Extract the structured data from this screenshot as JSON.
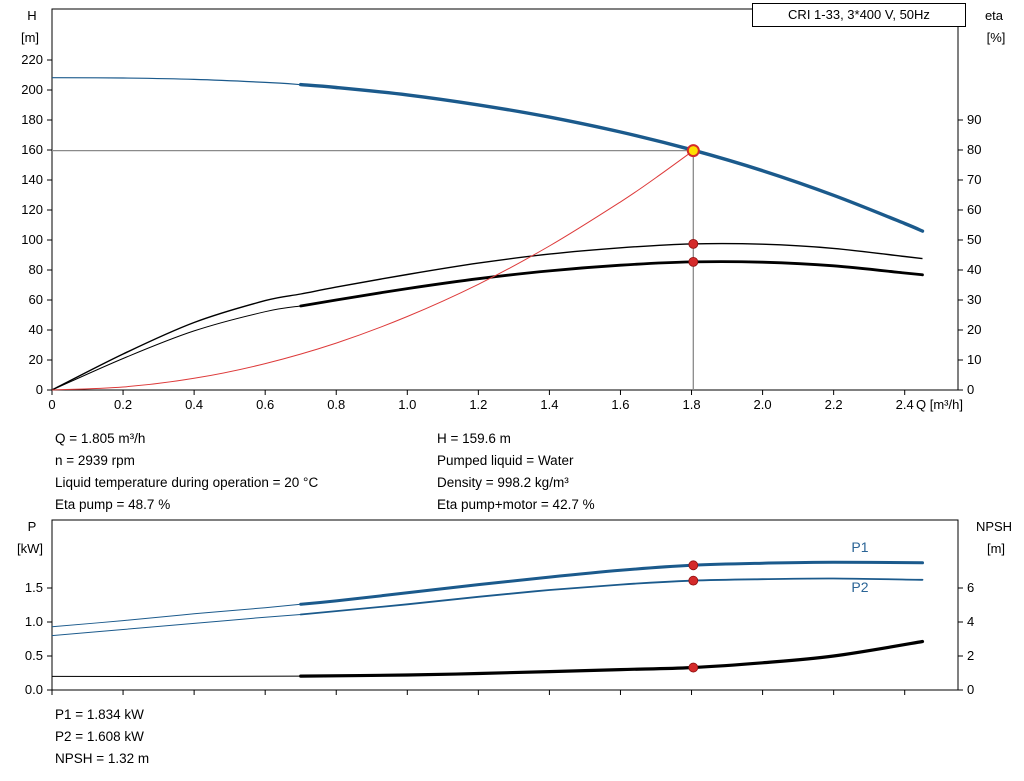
{
  "title_box": "CRI 1-33, 3*400 V, 50Hz",
  "colors": {
    "blue": "#1b5a8c",
    "red": "#d42a2a",
    "system_red": "#dd3a3a",
    "black": "#000000",
    "gray_ref": "#8a8a8a",
    "duty_fill": "#ffdf00",
    "label_blue": "#2a6496",
    "axis": "#000000"
  },
  "info": {
    "left": [
      "Q = 1.805 m³/h",
      "n = 2939 rpm",
      "Liquid temperature during operation = 20 °C",
      "Eta pump = 48.7 %"
    ],
    "right": [
      "H = 159.6 m",
      "Pumped liquid = Water",
      "Density = 998.2 kg/m³",
      "Eta pump+motor = 42.7 %"
    ],
    "bottom": [
      "P1 = 1.834 kW",
      "P2 = 1.608 kW",
      "NPSH = 1.32 m"
    ]
  },
  "chart_data": [
    {
      "type": "line",
      "title": "CRI 1-33, 3*400 V, 50Hz",
      "x_axis": {
        "label": "Q [m³/h]",
        "min": 0,
        "max": 2.55,
        "ticks": [
          0,
          0.2,
          0.4,
          0.6,
          0.8,
          1,
          1.2,
          1.4,
          1.6,
          1.8,
          2,
          2.2,
          2.4
        ],
        "tick_labels": [
          "0",
          "0.2",
          "0.4",
          "0.6",
          "0.8",
          "1.0",
          "1.2",
          "1.4",
          "1.6",
          "1.8",
          "2.0",
          "2.2",
          "2.4"
        ],
        "show_tick_labels": true
      },
      "left_axis": {
        "label": "H",
        "unit": "[m]",
        "min": 0,
        "max": 254,
        "ticks": [
          0,
          20,
          40,
          60,
          80,
          100,
          120,
          140,
          160,
          180,
          200,
          220
        ],
        "tick_labels": [
          "0",
          "20",
          "40",
          "60",
          "80",
          "100",
          "120",
          "140",
          "160",
          "180",
          "200",
          "220"
        ]
      },
      "right_axis": {
        "label": "eta",
        "unit": "[%]",
        "min": 0,
        "max": 127,
        "ticks": [
          0,
          10,
          20,
          30,
          40,
          50,
          60,
          70,
          80,
          90
        ],
        "tick_labels": [
          "0",
          "10",
          "20",
          "30",
          "40",
          "50",
          "60",
          "70",
          "80",
          "90"
        ]
      },
      "series": [
        {
          "name": "head-curve",
          "axis": "left",
          "color": "blue",
          "width": 1.2,
          "width_bold": 3.4,
          "bold_from": 0.7,
          "points": [
            [
              0,
              208.2
            ],
            [
              0.2,
              208.0
            ],
            [
              0.4,
              207.1
            ],
            [
              0.6,
              205.1
            ],
            [
              0.7,
              203.6
            ],
            [
              0.8,
              201.7
            ],
            [
              1.0,
              196.7
            ],
            [
              1.2,
              190.1
            ],
            [
              1.4,
              181.9
            ],
            [
              1.6,
              172.0
            ],
            [
              1.8,
              160.2
            ],
            [
              2.0,
              146.2
            ],
            [
              2.2,
              129.8
            ],
            [
              2.4,
              111.0
            ],
            [
              2.45,
              105.9
            ]
          ]
        },
        {
          "name": "eta-pump-curve",
          "axis": "right",
          "color": "black",
          "width": 1.4,
          "points": [
            [
              0,
              0
            ],
            [
              0.2,
              12.0
            ],
            [
              0.4,
              22.5
            ],
            [
              0.6,
              29.8
            ],
            [
              0.7,
              32.0
            ],
            [
              0.8,
              34.3
            ],
            [
              1.0,
              38.5
            ],
            [
              1.2,
              42.3
            ],
            [
              1.4,
              45.3
            ],
            [
              1.6,
              47.4
            ],
            [
              1.8,
              48.7
            ],
            [
              2.0,
              48.6
            ],
            [
              2.2,
              47.2
            ],
            [
              2.4,
              44.5
            ],
            [
              2.45,
              43.8
            ]
          ]
        },
        {
          "name": "eta-pump-motor-curve",
          "axis": "right",
          "color": "black",
          "width": 1.0,
          "width_bold": 2.8,
          "bold_from": 0.7,
          "points": [
            [
              0,
              0
            ],
            [
              0.2,
              10.5
            ],
            [
              0.4,
              19.7
            ],
            [
              0.6,
              26.1
            ],
            [
              0.7,
              28.0
            ],
            [
              0.8,
              30.0
            ],
            [
              1.0,
              33.8
            ],
            [
              1.2,
              37.1
            ],
            [
              1.4,
              39.7
            ],
            [
              1.6,
              41.6
            ],
            [
              1.8,
              42.7
            ],
            [
              2.0,
              42.6
            ],
            [
              2.2,
              41.4
            ],
            [
              2.4,
              39.0
            ],
            [
              2.45,
              38.4
            ]
          ]
        },
        {
          "name": "system-curve",
          "axis": "left",
          "color": "system_red",
          "width": 1.0,
          "points": [
            [
              0,
              0
            ],
            [
              0.2,
              2.0
            ],
            [
              0.4,
              7.8
            ],
            [
              0.6,
              17.6
            ],
            [
              0.8,
              31.3
            ],
            [
              1.0,
              49.0
            ],
            [
              1.2,
              70.5
            ],
            [
              1.4,
              96.0
            ],
            [
              1.6,
              125.4
            ],
            [
              1.7,
              141.6
            ],
            [
              1.805,
              159.6
            ]
          ]
        }
      ],
      "crosshair": {
        "q": 1.805,
        "value": 159.6
      },
      "markers": [
        {
          "name": "duty-point",
          "q": 1.805,
          "value": 159.6,
          "axis": "left",
          "style": "duty"
        },
        {
          "name": "eta-pump-point",
          "q": 1.805,
          "value": 48.7,
          "axis": "right",
          "style": "dot"
        },
        {
          "name": "eta-pump-motor-point",
          "q": 1.805,
          "value": 42.7,
          "axis": "right",
          "style": "dot"
        }
      ],
      "series_labels": []
    },
    {
      "type": "line",
      "title": "",
      "x_axis": {
        "label": "",
        "min": 0,
        "max": 2.55,
        "ticks": [
          0,
          0.2,
          0.4,
          0.6,
          0.8,
          1,
          1.2,
          1.4,
          1.6,
          1.8,
          2,
          2.2,
          2.4
        ],
        "tick_labels": [],
        "show_tick_labels": false
      },
      "left_axis": {
        "label": "P",
        "unit": "[kW]",
        "min": 0,
        "max": 2.5,
        "ticks": [
          0,
          0.5,
          1,
          1.5
        ],
        "tick_labels": [
          "0.0",
          "0.5",
          "1.0",
          "1.5"
        ]
      },
      "right_axis": {
        "label": "NPSH",
        "unit": "[m]",
        "min": 0,
        "max": 10,
        "ticks": [
          0,
          2,
          4,
          6
        ],
        "tick_labels": [
          "0",
          "2",
          "4",
          "6"
        ]
      },
      "series": [
        {
          "name": "p1-curve",
          "axis": "left",
          "color": "blue",
          "width": 1.0,
          "width_bold": 3.0,
          "bold_from": 0.7,
          "points": [
            [
              0,
              0.93
            ],
            [
              0.2,
              1.02
            ],
            [
              0.4,
              1.12
            ],
            [
              0.6,
              1.21
            ],
            [
              0.7,
              1.26
            ],
            [
              0.8,
              1.31
            ],
            [
              1.0,
              1.43
            ],
            [
              1.2,
              1.55
            ],
            [
              1.4,
              1.66
            ],
            [
              1.6,
              1.76
            ],
            [
              1.8,
              1.834
            ],
            [
              2.0,
              1.865
            ],
            [
              2.2,
              1.88
            ],
            [
              2.45,
              1.87
            ]
          ]
        },
        {
          "name": "p2-curve",
          "axis": "left",
          "color": "blue",
          "width": 1.0,
          "width_bold": 1.8,
          "bold_from": 0.7,
          "points": [
            [
              0,
              0.8
            ],
            [
              0.2,
              0.89
            ],
            [
              0.4,
              0.98
            ],
            [
              0.6,
              1.07
            ],
            [
              0.7,
              1.11
            ],
            [
              0.8,
              1.16
            ],
            [
              1.0,
              1.26
            ],
            [
              1.2,
              1.37
            ],
            [
              1.4,
              1.47
            ],
            [
              1.6,
              1.55
            ],
            [
              1.8,
              1.608
            ],
            [
              2.0,
              1.63
            ],
            [
              2.2,
              1.64
            ],
            [
              2.45,
              1.62
            ]
          ]
        },
        {
          "name": "npsh-curve",
          "axis": "right",
          "color": "black",
          "width": 1.0,
          "width_bold": 3.2,
          "bold_from": 0.7,
          "points": [
            [
              0,
              0.8
            ],
            [
              0.4,
              0.8
            ],
            [
              0.7,
              0.82
            ],
            [
              1.0,
              0.88
            ],
            [
              1.2,
              0.97
            ],
            [
              1.4,
              1.08
            ],
            [
              1.6,
              1.2
            ],
            [
              1.8,
              1.32
            ],
            [
              2.0,
              1.6
            ],
            [
              2.2,
              2.0
            ],
            [
              2.45,
              2.85
            ]
          ]
        }
      ],
      "markers": [
        {
          "name": "p1-point",
          "q": 1.805,
          "value": 1.834,
          "axis": "left",
          "style": "dot"
        },
        {
          "name": "p2-point",
          "q": 1.805,
          "value": 1.608,
          "axis": "left",
          "style": "dot"
        },
        {
          "name": "npsh-point",
          "q": 1.805,
          "value": 1.32,
          "axis": "right",
          "style": "dot"
        }
      ],
      "series_labels": [
        {
          "text": "P1",
          "q": 2.25,
          "value": 2.03,
          "axis": "left"
        },
        {
          "text": "P2",
          "q": 2.25,
          "value": 1.44,
          "axis": "left"
        }
      ]
    }
  ]
}
